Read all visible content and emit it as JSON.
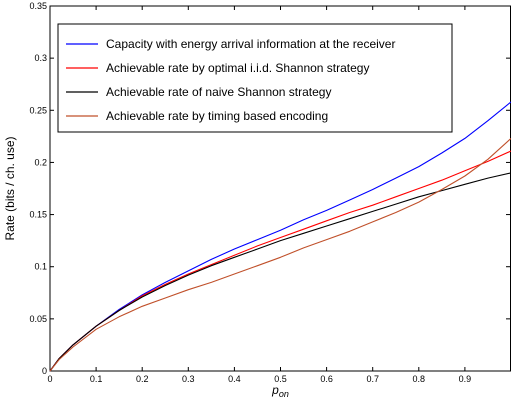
{
  "chart_data": {
    "type": "line",
    "title": "",
    "xlabel_base": "p",
    "xlabel_sub": "on",
    "ylabel": "Rate (bits / ch. use)",
    "xlim": [
      0,
      1
    ],
    "ylim": [
      0,
      0.35
    ],
    "xticks": [
      0,
      0.1,
      0.2,
      0.3,
      0.4,
      0.5,
      0.6,
      0.7,
      0.8,
      0.9
    ],
    "xtick_labels": [
      "0",
      "0.1",
      "0.2",
      "0.3",
      "0.4",
      "0.5",
      "0.6",
      "0.7",
      "0.8",
      "0.9"
    ],
    "yticks": [
      0,
      0.05,
      0.1,
      0.15,
      0.2,
      0.25,
      0.3,
      0.35
    ],
    "ytick_labels": [
      "0",
      "0.05",
      "0.1",
      "0.15",
      "0.2",
      "0.25",
      "0.3",
      "0.35"
    ],
    "grid": false,
    "legend_position": "top-left",
    "series": [
      {
        "name": "Capacity with energy arrival information at the receiver",
        "color": "#0000ff",
        "x": [
          0,
          0.02,
          0.05,
          0.1,
          0.15,
          0.2,
          0.25,
          0.3,
          0.35,
          0.4,
          0.45,
          0.5,
          0.55,
          0.6,
          0.65,
          0.7,
          0.75,
          0.8,
          0.85,
          0.9,
          0.95,
          1.0
        ],
        "y": [
          0,
          0.012,
          0.025,
          0.043,
          0.059,
          0.073,
          0.085,
          0.096,
          0.107,
          0.117,
          0.126,
          0.135,
          0.145,
          0.154,
          0.164,
          0.174,
          0.185,
          0.196,
          0.209,
          0.223,
          0.24,
          0.258
        ]
      },
      {
        "name": "Achievable rate by optimal i.i.d. Shannon strategy",
        "color": "#ff0000",
        "x": [
          0,
          0.02,
          0.05,
          0.1,
          0.15,
          0.2,
          0.25,
          0.3,
          0.35,
          0.4,
          0.45,
          0.5,
          0.55,
          0.6,
          0.65,
          0.7,
          0.75,
          0.8,
          0.85,
          0.9,
          0.95,
          1.0
        ],
        "y": [
          0,
          0.012,
          0.025,
          0.043,
          0.058,
          0.072,
          0.083,
          0.093,
          0.102,
          0.111,
          0.12,
          0.128,
          0.136,
          0.144,
          0.152,
          0.159,
          0.167,
          0.175,
          0.183,
          0.192,
          0.201,
          0.211
        ]
      },
      {
        "name": "Achievable rate of naive Shannon strategy",
        "color": "#000000",
        "x": [
          0,
          0.02,
          0.05,
          0.1,
          0.15,
          0.2,
          0.25,
          0.3,
          0.35,
          0.4,
          0.45,
          0.5,
          0.55,
          0.6,
          0.65,
          0.7,
          0.75,
          0.8,
          0.85,
          0.9,
          0.95,
          1.0
        ],
        "y": [
          0,
          0.012,
          0.025,
          0.043,
          0.058,
          0.071,
          0.082,
          0.092,
          0.101,
          0.109,
          0.117,
          0.125,
          0.132,
          0.139,
          0.146,
          0.153,
          0.16,
          0.167,
          0.173,
          0.179,
          0.185,
          0.19
        ]
      },
      {
        "name": "Achievable rate by timing based encoding",
        "color": "#c0502a",
        "x": [
          0,
          0.02,
          0.05,
          0.1,
          0.15,
          0.2,
          0.25,
          0.3,
          0.35,
          0.4,
          0.45,
          0.5,
          0.55,
          0.6,
          0.65,
          0.7,
          0.75,
          0.8,
          0.85,
          0.9,
          0.95,
          1.0
        ],
        "y": [
          0,
          0.011,
          0.023,
          0.04,
          0.052,
          0.062,
          0.07,
          0.078,
          0.085,
          0.093,
          0.101,
          0.109,
          0.118,
          0.126,
          0.134,
          0.143,
          0.152,
          0.162,
          0.174,
          0.187,
          0.203,
          0.223
        ]
      }
    ]
  }
}
